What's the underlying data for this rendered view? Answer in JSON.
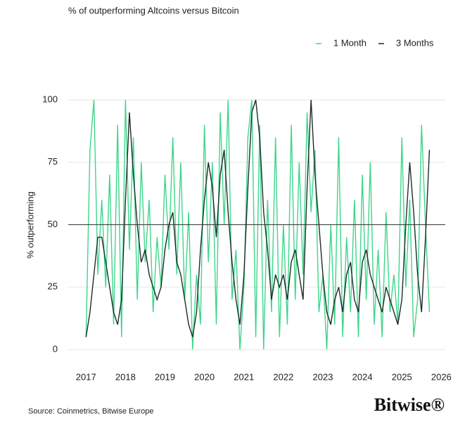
{
  "chart_data": {
    "type": "line",
    "title": "% of outperforming Altcoins versus Bitcoin",
    "y_label": "% outperforming",
    "source": "Source: Coinmetrics, Bitwise Europe",
    "brand": "Bitwise®",
    "x": [
      2017.0,
      2017.1,
      2017.2,
      2017.3,
      2017.4,
      2017.5,
      2017.6,
      2017.7,
      2017.8,
      2017.9,
      2018.0,
      2018.1,
      2018.2,
      2018.3,
      2018.4,
      2018.5,
      2018.6,
      2018.7,
      2018.8,
      2018.9,
      2019.0,
      2019.1,
      2019.2,
      2019.3,
      2019.4,
      2019.5,
      2019.6,
      2019.7,
      2019.8,
      2019.9,
      2020.0,
      2020.1,
      2020.2,
      2020.3,
      2020.4,
      2020.5,
      2020.6,
      2020.7,
      2020.8,
      2020.9,
      2021.0,
      2021.1,
      2021.2,
      2021.3,
      2021.4,
      2021.5,
      2021.6,
      2021.7,
      2021.8,
      2021.9,
      2022.0,
      2022.1,
      2022.2,
      2022.3,
      2022.4,
      2022.5,
      2022.6,
      2022.7,
      2022.8,
      2022.9,
      2023.0,
      2023.1,
      2023.2,
      2023.3,
      2023.4,
      2023.5,
      2023.6,
      2023.7,
      2023.8,
      2023.9,
      2024.0,
      2024.1,
      2024.2,
      2024.3,
      2024.4,
      2024.5,
      2024.6,
      2024.7,
      2024.8,
      2024.9,
      2025.0,
      2025.1,
      2025.2,
      2025.3,
      2025.4,
      2025.5,
      2025.6,
      2025.7
    ],
    "series": [
      {
        "name": "1 Month",
        "color": "#3fd68a",
        "values": [
          5,
          80,
          100,
          30,
          60,
          25,
          70,
          10,
          90,
          5,
          100,
          40,
          85,
          20,
          75,
          35,
          60,
          15,
          45,
          25,
          70,
          40,
          85,
          30,
          75,
          20,
          55,
          0,
          30,
          10,
          90,
          35,
          75,
          10,
          95,
          50,
          100,
          20,
          40,
          0,
          25,
          85,
          100,
          5,
          90,
          0,
          60,
          15,
          85,
          5,
          50,
          10,
          90,
          20,
          75,
          30,
          95,
          55,
          80,
          15,
          30,
          0,
          50,
          10,
          85,
          5,
          45,
          15,
          60,
          5,
          70,
          20,
          75,
          10,
          40,
          5,
          55,
          15,
          30,
          10,
          85,
          25,
          60,
          5,
          20,
          90,
          50,
          15
        ]
      },
      {
        "name": "3 Months",
        "color": "#1f2b2b",
        "values": [
          5,
          15,
          30,
          45,
          45,
          35,
          25,
          15,
          10,
          20,
          60,
          95,
          70,
          50,
          35,
          40,
          30,
          25,
          20,
          25,
          40,
          50,
          55,
          35,
          30,
          20,
          10,
          5,
          15,
          40,
          60,
          75,
          65,
          45,
          70,
          80,
          55,
          35,
          20,
          10,
          30,
          65,
          95,
          100,
          85,
          55,
          40,
          20,
          30,
          25,
          30,
          20,
          35,
          40,
          30,
          20,
          65,
          100,
          70,
          50,
          30,
          15,
          10,
          20,
          25,
          15,
          30,
          35,
          20,
          15,
          35,
          40,
          30,
          25,
          20,
          15,
          25,
          20,
          15,
          10,
          20,
          50,
          75,
          55,
          30,
          15,
          45,
          80
        ]
      }
    ],
    "reference_line": 50,
    "xlim": [
      2016.55,
      2026.1
    ],
    "xticks": [
      2017,
      2018,
      2019,
      2020,
      2021,
      2022,
      2023,
      2024,
      2025,
      2026
    ],
    "ylim": [
      0,
      100
    ],
    "yticks": [
      0,
      25,
      50,
      75,
      100
    ],
    "grid": true
  }
}
